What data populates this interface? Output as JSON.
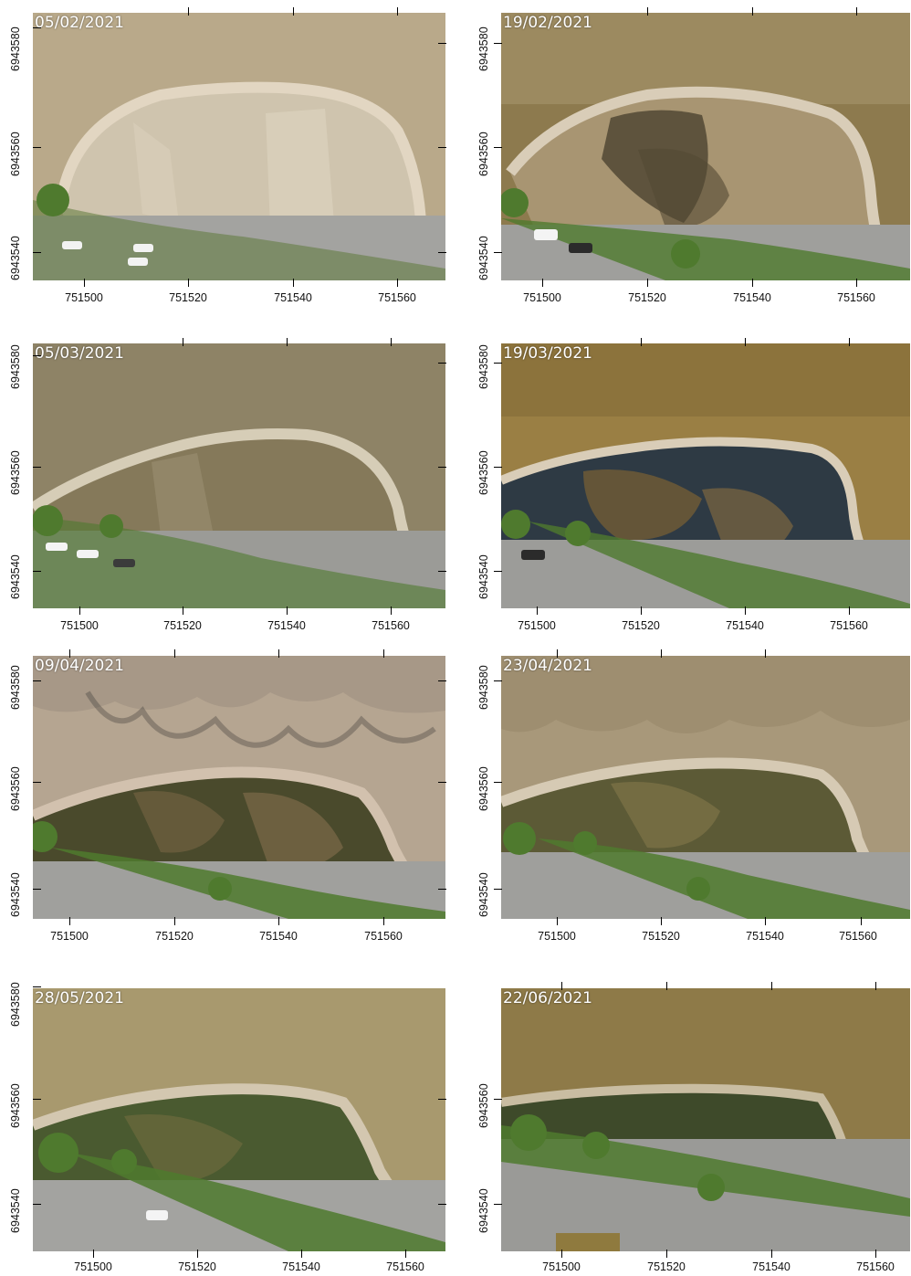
{
  "panels": [
    {
      "date": "05/02/2021",
      "x_ticks": [
        "751500",
        "751520",
        "751540",
        "751560"
      ],
      "y_ticks": [
        "6943580",
        "6943560",
        "6943540"
      ]
    },
    {
      "date": "19/02/2021",
      "x_ticks": [
        "751500",
        "751520",
        "751540",
        "751560"
      ],
      "y_ticks": [
        "6943580",
        "6943560",
        "6943540"
      ]
    },
    {
      "date": "05/03/2021",
      "x_ticks": [
        "751500",
        "751520",
        "751540",
        "751560"
      ],
      "y_ticks": [
        "6943580",
        "6943560",
        "6943540"
      ]
    },
    {
      "date": "19/03/2021",
      "x_ticks": [
        "751500",
        "751520",
        "751540",
        "751560"
      ],
      "y_ticks": [
        "6943580",
        "6943560",
        "6943540"
      ]
    },
    {
      "date": "09/04/2021",
      "x_ticks": [
        "751500",
        "751520",
        "751540",
        "751560"
      ],
      "y_ticks": [
        "6943580",
        "6943560",
        "6943540"
      ]
    },
    {
      "date": "23/04/2021",
      "x_ticks": [
        "751500",
        "751520",
        "751540",
        "751560"
      ],
      "y_ticks": [
        "6943580",
        "6943560",
        "6943540"
      ]
    },
    {
      "date": "28/05/2021",
      "x_ticks": [
        "751500",
        "751520",
        "751540",
        "751560"
      ],
      "y_ticks": [
        "6943580",
        "6943560",
        "6943540"
      ]
    },
    {
      "date": "22/06/2021",
      "x_ticks": [
        "751500",
        "751520",
        "751540",
        "751560"
      ],
      "y_ticks": [
        "6943560",
        "6943540"
      ]
    }
  ],
  "colors": {
    "water_light": "#b9a98a",
    "water_brown": "#8d7a4e",
    "sand": "#d9cdb8",
    "basin_dark": "#3a3524",
    "vegetation": "#4f7a2e",
    "road": "#a3a3a0"
  }
}
